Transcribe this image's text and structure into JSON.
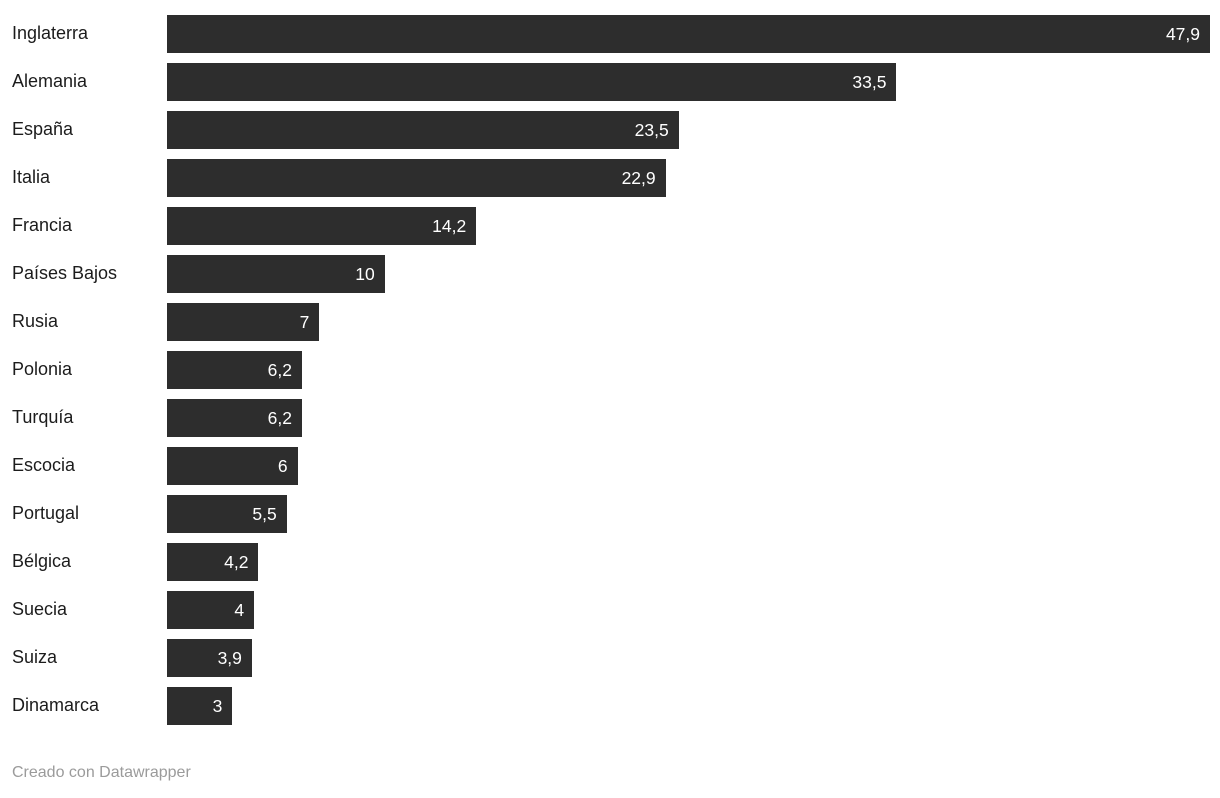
{
  "chart_data": {
    "type": "bar",
    "orientation": "horizontal",
    "title": "",
    "xlabel": "",
    "ylabel": "",
    "xlim": [
      0,
      47.9
    ],
    "grid": false,
    "legend": false,
    "categories": [
      "Inglaterra",
      "Alemania",
      "España",
      "Italia",
      "Francia",
      "Países Bajos",
      "Rusia",
      "Polonia",
      "Turquía",
      "Escocia",
      "Portugal",
      "Bélgica",
      "Suecia",
      "Suiza",
      "Dinamarca"
    ],
    "values": [
      47.9,
      33.5,
      23.5,
      22.9,
      14.2,
      10,
      7,
      6.2,
      6.2,
      6,
      5.5,
      4.2,
      4,
      3.9,
      3
    ],
    "value_labels": [
      "47,9",
      "33,5",
      "23,5",
      "22,9",
      "14,2",
      "10",
      "7",
      "6,2",
      "6,2",
      "6",
      "5,5",
      "4,2",
      "4",
      "3,9",
      "3"
    ],
    "bar_color": "#2d2d2d",
    "value_text_color": "#ffffff",
    "label_text_color": "#1c1c1c"
  },
  "footer": {
    "attribution": "Creado con Datawrapper",
    "text_color": "#9b9b9b"
  }
}
